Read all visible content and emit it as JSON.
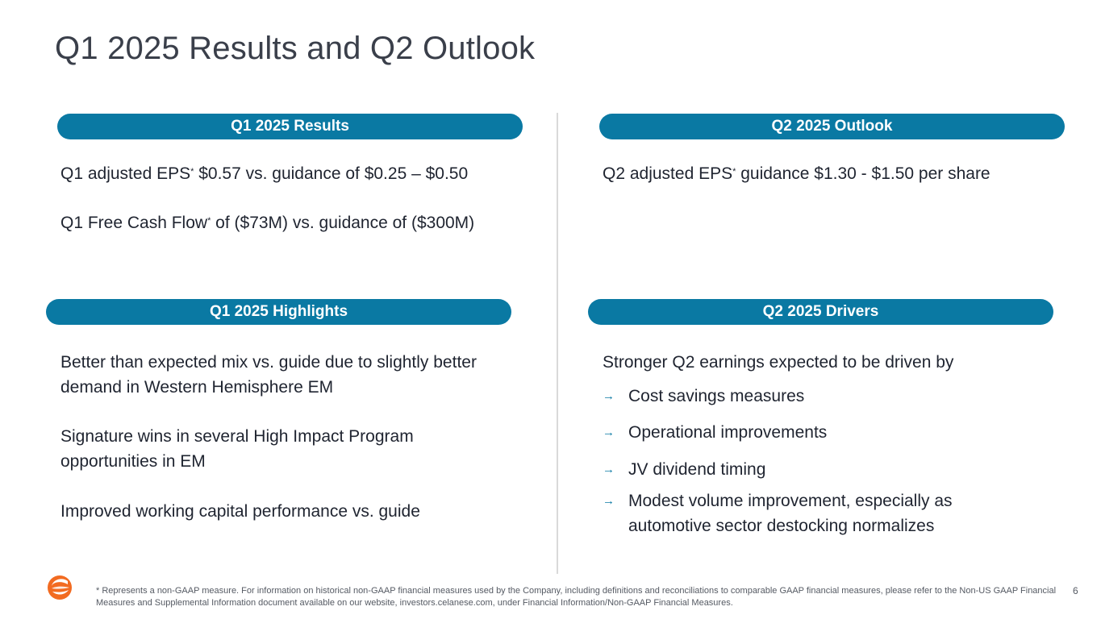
{
  "title": "Q1 2025 Results and Q2 Outlook",
  "colors": {
    "accent": "#0a79a3",
    "logo_orange": "#f26b21"
  },
  "sections": {
    "results": {
      "header": "Q1 2025 Results",
      "eps": {
        "pre": "Q1 adjusted EPS",
        "sup": "*",
        "post": " $0.57 vs. guidance of $0.25 – $0.50"
      },
      "fcf": {
        "pre": "Q1 Free Cash Flow",
        "sup": "*",
        "post": " of ($73M) vs. guidance of ($300M)"
      }
    },
    "outlook": {
      "header": "Q2 2025 Outlook",
      "eps": {
        "pre": "Q2 adjusted EPS",
        "sup": "*",
        "post": " guidance $1.30 -  $1.50 per share"
      }
    },
    "highlights": {
      "header": "Q1 2025 Highlights",
      "items": [
        "Better than expected mix vs. guide due to slightly better demand in Western Hemisphere EM",
        "Signature wins in several High Impact Program opportunities in EM",
        "Improved working capital performance vs. guide"
      ]
    },
    "drivers": {
      "header": "Q2 2025 Drivers",
      "intro": "Stronger Q2 earnings expected to be driven by",
      "bullet_icon": "arrow-right-icon",
      "bullets": [
        "Cost savings measures",
        "Operational improvements",
        "JV dividend timing",
        "Modest volume improvement, especially as automotive sector destocking normalizes"
      ]
    }
  },
  "footnote": "* Represents a non-GAAP measure. For information on historical non-GAAP financial measures used by the Company, including definitions and reconciliations to comparable GAAP financial measures, please refer to the Non-US GAAP Financial Measures and Supplemental Information document available on our website, investors.celanese.com, under Financial Information/Non-GAAP Financial Measures.",
  "page_number": "6"
}
